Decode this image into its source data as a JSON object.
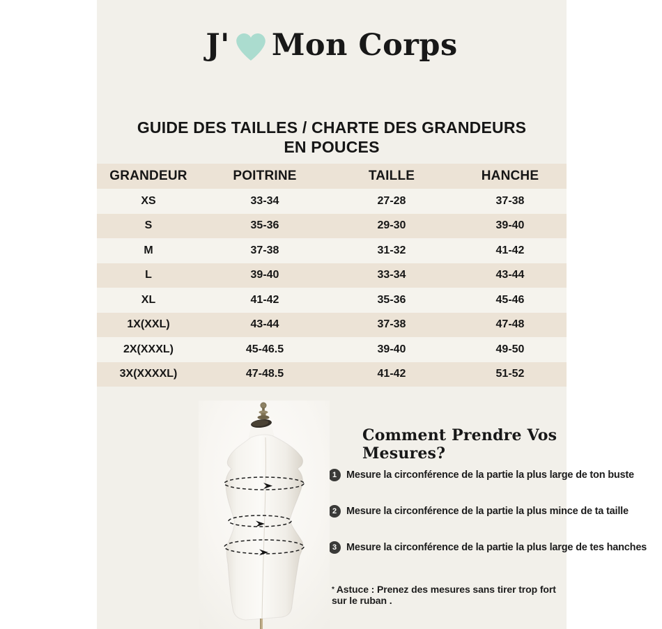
{
  "colors": {
    "canvas_cream": "#f2f0ea",
    "table_beige": "#ece3d6",
    "table_row_light": "#f5f3ed",
    "heart_mint": "#abdccf",
    "text_dark": "#1c1c1c"
  },
  "brand": {
    "title_prefix": "J'",
    "heart_icon": "heart",
    "title_suffix": "Mon Corps"
  },
  "size_guide": {
    "heading_line1": "GUIDE DES TAILLES / CHARTE DES GRANDEURS",
    "heading_line2": "EN POUCES",
    "table": {
      "columns": [
        "GRANDEUR",
        "POITRINE",
        "TAILLE",
        "HANCHE"
      ],
      "rows": [
        [
          "XS",
          "33-34",
          "27-28",
          "37-38"
        ],
        [
          "S",
          "35-36",
          "29-30",
          "39-40"
        ],
        [
          "M",
          "37-38",
          "31-32",
          "41-42"
        ],
        [
          "L",
          "39-40",
          "33-34",
          "43-44"
        ],
        [
          "XL",
          "41-42",
          "35-36",
          "45-46"
        ],
        [
          "1X(XXL)",
          "43-44",
          "37-38",
          "47-48"
        ],
        [
          "2X(XXXL)",
          "45-46.5",
          "39-40",
          "49-50"
        ],
        [
          "3X(XXXXL)",
          "47-48.5",
          "41-42",
          "51-52"
        ]
      ]
    }
  },
  "measures": {
    "title": "Comment Prendre Vos Mesures?",
    "steps": [
      {
        "num": "1",
        "text": "Mesure la circonférence de la partie la plus large de ton buste"
      },
      {
        "num": "2",
        "text": "Mesure la circonférence de la partie la plus mince de ta taille"
      },
      {
        "num": "3",
        "text": "Mesure la circonférence de la partie la plus large de tes hanches"
      }
    ],
    "tip_star": "*",
    "tip": "Astuce : Prenez des mesures sans tirer trop fort sur le ruban ."
  }
}
